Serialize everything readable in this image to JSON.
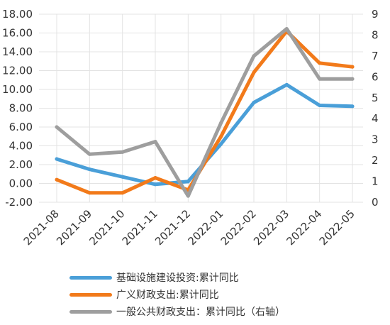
{
  "chart_data": {
    "type": "line",
    "categories": [
      "2021-08",
      "2021-09",
      "2021-10",
      "2021-11",
      "2021-12",
      "2022-01",
      "2022-02",
      "2022-03",
      "2022-04",
      "2022-05"
    ],
    "left_axis": {
      "ylim": [
        -2,
        18
      ],
      "ticks": [
        "-2.00",
        "0.00",
        "2.00",
        "4.00",
        "6.00",
        "8.00",
        "10.00",
        "12.00",
        "14.00",
        "16.00",
        "18.00"
      ]
    },
    "right_axis": {
      "ylim": [
        0,
        9
      ],
      "ticks": [
        "0",
        "1",
        "2",
        "3",
        "4",
        "5",
        "6",
        "7",
        "8",
        "9"
      ]
    },
    "grid": true,
    "legend_position": "bottom",
    "series": [
      {
        "name": "基础设施建设投资:累计同比",
        "axis": "left",
        "color": "#4a9fd8",
        "values": [
          2.6,
          1.5,
          0.7,
          -0.1,
          0.2,
          4.2,
          8.6,
          10.5,
          8.3,
          8.2
        ]
      },
      {
        "name": "广义财政支出:累计同比",
        "axis": "left",
        "color": "#f27a1a",
        "values": [
          0.4,
          -1.0,
          -1.0,
          0.6,
          -0.7,
          5.0,
          11.8,
          16.2,
          12.8,
          12.4
        ]
      },
      {
        "name": "一般公共财政支出：累计同比（右轴）",
        "axis": "right",
        "color": "#9e9e9e",
        "values": [
          3.6,
          2.3,
          2.4,
          2.9,
          0.3,
          3.8,
          7.0,
          8.3,
          5.9,
          5.9
        ]
      }
    ]
  }
}
